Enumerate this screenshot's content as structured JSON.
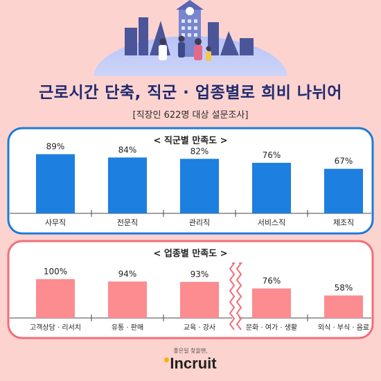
{
  "header": {
    "title": "근로시간 단축, 직군 · 업종별로 희비 나뉘어",
    "subtitle": "[직장인 622명 대상 설문조사]"
  },
  "colors": {
    "background": "#fdd3d0",
    "job_border": "#1e7bd8",
    "job_bar": "#1d7fe0",
    "industry_border": "#f26e78",
    "industry_bar": "#fc8c8f",
    "title": "#1f2a6e"
  },
  "chart_data": [
    {
      "type": "bar",
      "title": "< 직군별 만족도 >",
      "categories": [
        "사무직",
        "전문직",
        "관리직",
        "서비스직",
        "제조직"
      ],
      "values": [
        89,
        84,
        82,
        76,
        67
      ],
      "value_labels": [
        "89%",
        "84%",
        "82%",
        "76%",
        "67%"
      ],
      "ylim": [
        0,
        100
      ],
      "grid": false
    },
    {
      "type": "bar",
      "title": "< 업종별 만족도 >",
      "categories": [
        "고객상담 · 리서치",
        "유통 · 판매",
        "교육 · 강사",
        "문화 · 여가 · 생활",
        "외식 · 부식 · 음료"
      ],
      "values": [
        100,
        94,
        93,
        76,
        58
      ],
      "value_labels": [
        "100%",
        "94%",
        "93%",
        "76%",
        "58%"
      ],
      "ylim": [
        0,
        100
      ],
      "grid": false,
      "axis_break_after_index": 2
    }
  ],
  "footer": {
    "tagline": "좋은일 찾을땐,",
    "logo": "Incruit"
  }
}
